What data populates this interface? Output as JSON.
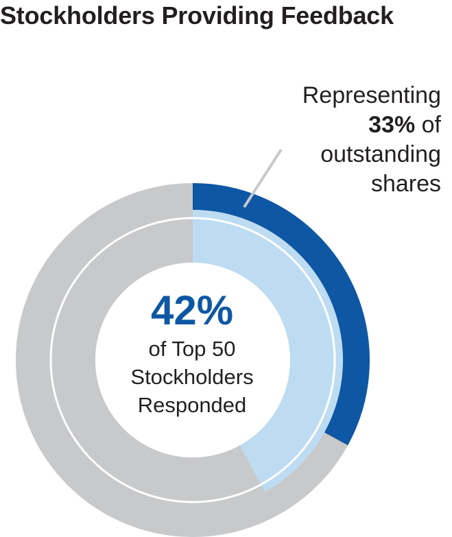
{
  "title": "Stockholders Providing Feedback",
  "callout": {
    "line1": "Representing",
    "value": "33%",
    "suffix": "of",
    "line3": "outstanding",
    "line4": "shares"
  },
  "center": {
    "value": "42%",
    "line1": "of Top 50",
    "line2": "Stockholders",
    "line3": "Responded"
  },
  "colors": {
    "outer_fill": "#0e57a4",
    "inner_fill": "#bddcf2",
    "remainder": "#c8c9cb",
    "center_value": "#0e57a4",
    "leader_line": "#c8c9cb"
  },
  "chart_data": [
    {
      "type": "pie",
      "ring": "outer",
      "values": [
        33,
        67
      ],
      "annotation": "Representing 33% of outstanding shares"
    },
    {
      "type": "pie",
      "ring": "inner",
      "values": [
        42,
        58
      ],
      "annotation": "42% of Top 50 Stockholders Responded"
    }
  ]
}
